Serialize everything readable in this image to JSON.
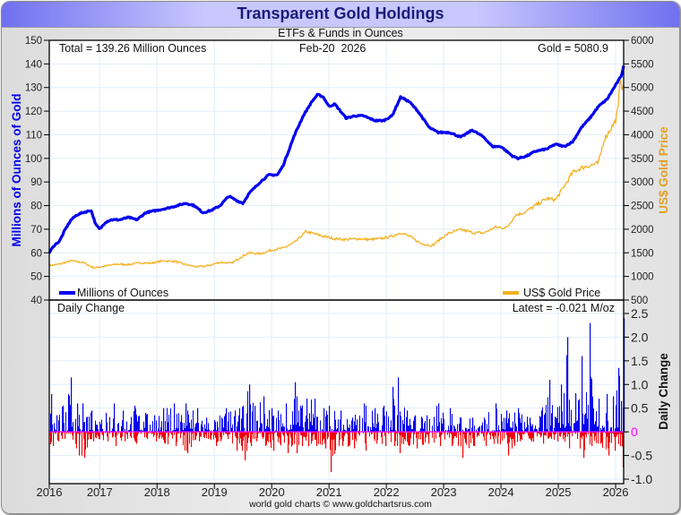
{
  "window": {
    "title": "Transparent Gold Holdings",
    "subtitle": "ETFs & Funds in Ounces",
    "footer": "world gold charts © www.goldchartsrus.com"
  },
  "header": {
    "total_label": "Total = 139.26 Million Ounces",
    "date_label": "Feb-20  2026",
    "gold_label": "Gold = 5080.9",
    "daily_change_label": "Daily Change",
    "latest_label": "Latest = -0.021 M/oz"
  },
  "colors": {
    "holdings": "#0000ee",
    "gold_price": "#f5b020",
    "positive_bar": "#0000ee",
    "negative_bar": "#ee0000",
    "zero_line": "#ff00ff",
    "left_axis_label": "#0000ee",
    "right_axis_label": "#e0a020",
    "grid": "#e2eef8"
  },
  "chart_data": [
    {
      "type": "line",
      "title": "Transparent Gold Holdings",
      "subtitle": "ETFs & Funds in Ounces",
      "xlabel": "",
      "x_ticks": [
        "2016",
        "2017",
        "2018",
        "2019",
        "2020",
        "2021",
        "2022",
        "2023",
        "2024",
        "2025",
        "2026"
      ],
      "xlim": [
        2016.12,
        2026.14
      ],
      "y_left": {
        "label": "Millions of Ounces of Gold",
        "ticks": [
          "40",
          "50",
          "60",
          "70",
          "80",
          "90",
          "100",
          "110",
          "120",
          "130",
          "140",
          "150"
        ],
        "ylim": [
          40,
          150
        ]
      },
      "y_right": {
        "label": "US$ Gold Price",
        "ticks": [
          "500",
          "1000",
          "1500",
          "2000",
          "2500",
          "3000",
          "3500",
          "4000",
          "4500",
          "5000",
          "5500",
          "6000"
        ],
        "ylim": [
          500,
          6000
        ]
      },
      "grid": true,
      "legend": [
        {
          "name": "Millions of Ounces",
          "position": "bottom-left"
        },
        {
          "name": "US$ Gold Price",
          "position": "bottom-right"
        }
      ],
      "series": [
        {
          "name": "Millions of Ounces",
          "axis": "left",
          "x": [
            2016.12,
            2016.2,
            2016.3,
            2016.4,
            2016.5,
            2016.6,
            2016.7,
            2016.85,
            2016.93,
            2017.0,
            2017.1,
            2017.2,
            2017.35,
            2017.5,
            2017.65,
            2017.8,
            2018.0,
            2018.2,
            2018.35,
            2018.5,
            2018.65,
            2018.8,
            2018.95,
            2019.1,
            2019.25,
            2019.4,
            2019.5,
            2019.6,
            2019.8,
            2019.95,
            2020.1,
            2020.2,
            2020.4,
            2020.55,
            2020.7,
            2020.8,
            2020.9,
            2021.0,
            2021.1,
            2021.3,
            2021.45,
            2021.6,
            2021.8,
            2021.95,
            2022.1,
            2022.25,
            2022.4,
            2022.55,
            2022.75,
            2022.9,
            2023.1,
            2023.3,
            2023.5,
            2023.7,
            2023.85,
            2024.0,
            2024.2,
            2024.3,
            2024.45,
            2024.6,
            2024.8,
            2024.95,
            2025.1,
            2025.25,
            2025.4,
            2025.55,
            2025.7,
            2025.85,
            2026.0,
            2026.1,
            2026.14
          ],
          "y": [
            60,
            63,
            65,
            70,
            74,
            76,
            77,
            78,
            72,
            70,
            73,
            74,
            74,
            75,
            74,
            77,
            78,
            79,
            80,
            81,
            80,
            77,
            78,
            80,
            84,
            82,
            81,
            85,
            90,
            93,
            93,
            97,
            110,
            118,
            124,
            127,
            126,
            122,
            123,
            117,
            118,
            118,
            116,
            116,
            118,
            126,
            124,
            120,
            113,
            111,
            111,
            109,
            112,
            109,
            105,
            105,
            101,
            100,
            101,
            103,
            104,
            106,
            105,
            107,
            113,
            117,
            122,
            125,
            131,
            135,
            139.3
          ],
          "last_value": 139.26
        },
        {
          "name": "US$ Gold Price",
          "axis": "right",
          "x": [
            2016.12,
            2016.3,
            2016.5,
            2016.7,
            2016.9,
            2017.1,
            2017.3,
            2017.5,
            2017.7,
            2017.9,
            2018.1,
            2018.3,
            2018.5,
            2018.7,
            2018.9,
            2019.1,
            2019.3,
            2019.45,
            2019.6,
            2019.8,
            2020.0,
            2020.2,
            2020.4,
            2020.6,
            2020.75,
            2020.9,
            2021.1,
            2021.3,
            2021.5,
            2021.7,
            2021.9,
            2022.1,
            2022.25,
            2022.4,
            2022.6,
            2022.8,
            2022.95,
            2023.1,
            2023.3,
            2023.5,
            2023.7,
            2023.9,
            2024.1,
            2024.25,
            2024.4,
            2024.6,
            2024.8,
            2024.95,
            2025.1,
            2025.25,
            2025.4,
            2025.55,
            2025.7,
            2025.8,
            2025.9,
            2026.0,
            2026.05,
            2026.08,
            2026.12,
            2026.14
          ],
          "y": [
            1230,
            1260,
            1330,
            1300,
            1180,
            1220,
            1260,
            1250,
            1290,
            1280,
            1330,
            1320,
            1250,
            1200,
            1230,
            1300,
            1280,
            1400,
            1500,
            1480,
            1560,
            1600,
            1720,
            1950,
            1900,
            1850,
            1800,
            1780,
            1800,
            1780,
            1800,
            1850,
            1930,
            1850,
            1700,
            1650,
            1800,
            1920,
            1990,
            1930,
            1920,
            2040,
            2030,
            2300,
            2350,
            2500,
            2650,
            2620,
            2900,
            3200,
            3300,
            3350,
            3400,
            3900,
            4100,
            4300,
            4600,
            5300,
            4900,
            5080.9
          ],
          "last_value": 5080.9
        }
      ]
    },
    {
      "type": "bar",
      "title": "Daily Change",
      "ylabel": "Daily Change",
      "y_ticks": [
        "-1.0",
        "-0.5",
        "0",
        "0.5",
        "1.0",
        "1.5",
        "2.0",
        "2.5"
      ],
      "ylim": [
        -1.0,
        2.5
      ],
      "xlim": [
        2016.12,
        2026.14
      ],
      "grid": true,
      "series": [
        {
          "name": "Daily Change (M oz)",
          "description": "approx. biweekly max/min daily change envelope",
          "x": [
            2016.15,
            2016.25,
            2016.35,
            2016.5,
            2016.6,
            2016.7,
            2016.85,
            2016.95,
            2017.1,
            2017.25,
            2017.4,
            2017.6,
            2017.8,
            2017.95,
            2018.1,
            2018.3,
            2018.5,
            2018.7,
            2018.85,
            2019.0,
            2019.2,
            2019.35,
            2019.5,
            2019.6,
            2019.7,
            2019.85,
            2020.0,
            2020.1,
            2020.25,
            2020.4,
            2020.5,
            2020.6,
            2020.75,
            2020.9,
            2021.0,
            2021.2,
            2021.4,
            2021.6,
            2021.8,
            2021.95,
            2022.1,
            2022.2,
            2022.35,
            2022.5,
            2022.7,
            2022.9,
            2023.1,
            2023.3,
            2023.5,
            2023.7,
            2023.9,
            2024.1,
            2024.3,
            2024.5,
            2024.7,
            2024.85,
            2024.95,
            2025.05,
            2025.15,
            2025.3,
            2025.4,
            2025.55,
            2025.7,
            2025.85,
            2025.95,
            2026.05,
            2026.1,
            2026.14
          ],
          "up": [
            0.8,
            0.35,
            0.55,
            1.15,
            0.6,
            0.6,
            0.45,
            0.15,
            0.4,
            0.6,
            0.45,
            0.55,
            0.4,
            0.35,
            0.5,
            0.6,
            0.6,
            0.5,
            0.3,
            0.25,
            0.5,
            0.45,
            0.55,
            1.0,
            0.55,
            0.75,
            0.5,
            0.45,
            0.6,
            1.05,
            0.55,
            0.7,
            0.7,
            0.5,
            0.55,
            0.45,
            0.3,
            0.6,
            0.5,
            0.55,
            0.95,
            1.15,
            0.45,
            0.35,
            0.35,
            0.6,
            0.5,
            0.3,
            0.3,
            0.3,
            0.6,
            0.45,
            0.5,
            0.3,
            0.45,
            1.1,
            0.3,
            1.0,
            2.0,
            0.8,
            1.6,
            2.3,
            0.7,
            0.8,
            0.75,
            1.35,
            0.65,
            2.4
          ],
          "down": [
            -0.3,
            -0.2,
            -0.15,
            -0.1,
            -0.5,
            -0.55,
            -0.2,
            -0.15,
            -0.2,
            -0.3,
            -0.2,
            -0.25,
            -0.15,
            -0.2,
            -0.25,
            -0.3,
            -0.45,
            -0.2,
            -0.15,
            -0.3,
            -0.15,
            -0.4,
            -0.6,
            -0.3,
            -0.2,
            -0.3,
            -0.4,
            -0.25,
            -0.45,
            -0.45,
            -0.3,
            -0.3,
            -0.3,
            -0.35,
            -0.85,
            -0.3,
            -0.35,
            -0.4,
            -0.25,
            -0.3,
            -0.3,
            -0.45,
            -0.3,
            -0.35,
            -0.25,
            -0.3,
            -0.3,
            -0.55,
            -0.3,
            -0.3,
            -0.25,
            -0.5,
            -0.2,
            -0.2,
            -0.25,
            -0.15,
            -0.2,
            -0.15,
            -0.35,
            -0.15,
            -0.55,
            -0.3,
            -0.25,
            -0.5,
            -0.4,
            -0.3,
            -0.75,
            -0.021
          ],
          "latest": -0.021
        }
      ]
    }
  ]
}
